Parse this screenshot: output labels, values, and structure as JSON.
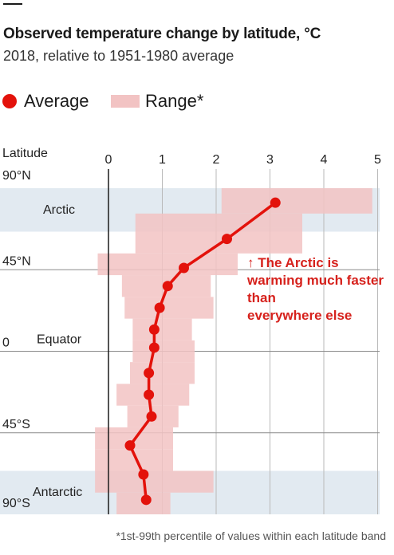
{
  "title": "Observed temperature change by latitude, °C",
  "subtitle": "2018, relative to 1951-1980 average",
  "legend": {
    "average_label": "Average",
    "range_label": "Range*"
  },
  "footnote": "*1st-99th percentile of values within each latitude band",
  "annotation": {
    "arrow": "↑",
    "lines": [
      "The Arctic is",
      "warming much faster",
      "than",
      "everywhere else"
    ]
  },
  "colors": {
    "average": "#e3120b",
    "range": "#f2c3c3",
    "region_band": "#e2eaf1",
    "axis": "#1a1a1a",
    "grid": "#8a8a8a"
  },
  "chart_data": {
    "type": "line",
    "title": "Observed temperature change by latitude, °C",
    "subtitle": "2018, relative to 1951-1980 average",
    "ylabel": "Latitude",
    "xlim": [
      -0.3,
      5
    ],
    "x_ticks": [
      "0",
      "1",
      "2",
      "3",
      "4",
      "5"
    ],
    "ylim": [
      -90,
      90
    ],
    "y_ticks": [
      {
        "value": 90,
        "label": "90°N"
      },
      {
        "value": 45,
        "label": "45°N"
      },
      {
        "value": 0,
        "label": "0"
      },
      {
        "value": -45,
        "label": "45°S"
      },
      {
        "value": -90,
        "label": "90°S"
      }
    ],
    "regions": [
      {
        "name": "Arctic",
        "lat_from": 90,
        "lat_to": 66
      },
      {
        "name": "Equator",
        "lat": 0
      },
      {
        "name": "Antarctic",
        "lat_from": -66,
        "lat_to": -90
      }
    ],
    "series": [
      {
        "name": "Average",
        "latitude": [
          82,
          62,
          46,
          36,
          24,
          12,
          2,
          -12,
          -24,
          -36,
          -52,
          -68,
          -82
        ],
        "values": [
          3.1,
          2.2,
          1.4,
          1.1,
          0.95,
          0.85,
          0.85,
          0.75,
          0.75,
          0.8,
          0.4,
          0.65,
          0.7
        ]
      }
    ],
    "range_bands": [
      {
        "lat_from": 90,
        "lat_to": 76,
        "min": 2.1,
        "max": 4.9
      },
      {
        "lat_from": 76,
        "lat_to": 68,
        "min": 0.5,
        "max": 3.6
      },
      {
        "lat_from": 68,
        "lat_to": 54,
        "min": 0.5,
        "max": 3.6
      },
      {
        "lat_from": 54,
        "lat_to": 42,
        "min": -0.2,
        "max": 2.4
      },
      {
        "lat_from": 42,
        "lat_to": 30,
        "min": 0.25,
        "max": 1.9
      },
      {
        "lat_from": 30,
        "lat_to": 18,
        "min": 0.3,
        "max": 1.95
      },
      {
        "lat_from": 18,
        "lat_to": 6,
        "min": 0.45,
        "max": 1.55
      },
      {
        "lat_from": 6,
        "lat_to": -6,
        "min": 0.45,
        "max": 1.6
      },
      {
        "lat_from": -6,
        "lat_to": -18,
        "min": 0.4,
        "max": 1.6
      },
      {
        "lat_from": -18,
        "lat_to": -30,
        "min": 0.15,
        "max": 1.5
      },
      {
        "lat_from": -30,
        "lat_to": -42,
        "min": 0.35,
        "max": 1.3
      },
      {
        "lat_from": -42,
        "lat_to": -54,
        "min": -0.25,
        "max": 1.2
      },
      {
        "lat_from": -54,
        "lat_to": -66,
        "min": -0.25,
        "max": 1.2
      },
      {
        "lat_from": -66,
        "lat_to": -78,
        "min": -0.25,
        "max": 1.95
      },
      {
        "lat_from": -78,
        "lat_to": -90,
        "min": 0.15,
        "max": 1.15
      }
    ]
  }
}
